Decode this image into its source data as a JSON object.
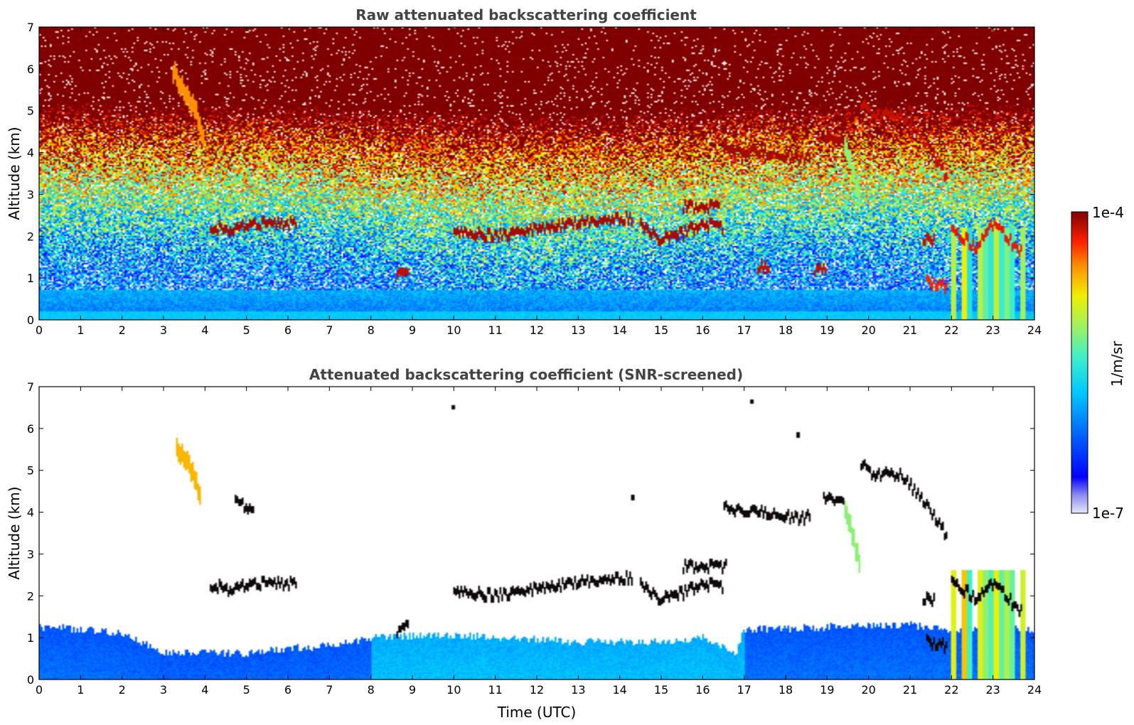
{
  "chart_data": [
    {
      "type": "heatmap",
      "title": "Raw attenuated backscattering coefficient",
      "xlabel": "",
      "ylabel": "Altitude (km)",
      "xlim": [
        0,
        24
      ],
      "ylim": [
        0,
        7
      ],
      "xticks": [
        "0",
        "1",
        "2",
        "3",
        "4",
        "5",
        "6",
        "7",
        "8",
        "9",
        "10",
        "11",
        "12",
        "13",
        "14",
        "15",
        "16",
        "17",
        "18",
        "19",
        "20",
        "21",
        "22",
        "23",
        "24"
      ],
      "yticks": [
        "0",
        "1",
        "2",
        "3",
        "4",
        "5",
        "6",
        "7"
      ],
      "screened": false,
      "background": {
        "near_surface_km": 0.6,
        "sky_noise_high": "yellow-orange-red speckle with altitude, daytime 8-17 UTC strongest"
      },
      "features": [
        {
          "kind": "fall_streak",
          "points": [
            [
              3.2,
              6.0
            ],
            [
              3.5,
              5.5
            ],
            [
              3.8,
              4.9
            ],
            [
              4.0,
              4.3
            ]
          ],
          "level": 0.82
        },
        {
          "kind": "cloud_layer",
          "points": [
            [
              4.1,
              2.25
            ],
            [
              4.6,
              2.1
            ],
            [
              5.2,
              2.3
            ],
            [
              6.2,
              2.3
            ]
          ],
          "level": 0.97
        },
        {
          "kind": "cloud_layer",
          "points": [
            [
              10.0,
              2.1
            ],
            [
              11.0,
              2.0
            ],
            [
              12.0,
              2.2
            ],
            [
              13.0,
              2.3
            ],
            [
              14.3,
              2.45
            ]
          ],
          "level": 0.97
        },
        {
          "kind": "cloud_layer",
          "points": [
            [
              14.5,
              2.3
            ],
            [
              15.0,
              1.9
            ],
            [
              15.6,
              2.1
            ],
            [
              16.0,
              2.3
            ],
            [
              16.5,
              2.2
            ]
          ],
          "level": 0.97
        },
        {
          "kind": "cloud_layer",
          "points": [
            [
              15.5,
              2.7
            ],
            [
              16.4,
              2.7
            ]
          ],
          "level": 0.97
        },
        {
          "kind": "cloud_layer",
          "points": [
            [
              16.5,
              4.1
            ],
            [
              17.3,
              4.0
            ],
            [
              18.3,
              3.85
            ],
            [
              18.6,
              3.9
            ]
          ],
          "level": 0.97
        },
        {
          "kind": "cloud_layer",
          "points": [
            [
              18.9,
              4.35
            ],
            [
              19.4,
              4.3
            ]
          ],
          "level": 0.97
        },
        {
          "kind": "fall_streak",
          "points": [
            [
              19.4,
              4.3
            ],
            [
              19.6,
              3.6
            ],
            [
              19.8,
              2.8
            ]
          ],
          "level": 0.6
        },
        {
          "kind": "cloud_layer",
          "points": [
            [
              19.8,
              5.2
            ],
            [
              20.1,
              4.9
            ],
            [
              20.8,
              4.9
            ],
            [
              21.2,
              4.4
            ],
            [
              21.6,
              3.9
            ],
            [
              21.9,
              3.4
            ]
          ],
          "level": 0.95
        },
        {
          "kind": "cloud_layer",
          "points": [
            [
              22.0,
              2.2
            ],
            [
              22.6,
              1.7
            ],
            [
              23.0,
              2.3
            ],
            [
              23.4,
              1.9
            ],
            [
              23.7,
              1.6
            ]
          ],
          "level": 0.92
        },
        {
          "kind": "rain_column",
          "x_range": [
            21.9,
            23.8
          ],
          "top_km": 2.2,
          "level": 0.55
        },
        {
          "kind": "low_cloud",
          "points": [
            [
              8.6,
              1.1
            ],
            [
              8.9,
              1.1
            ]
          ],
          "level": 0.95
        },
        {
          "kind": "low_cloud",
          "points": [
            [
              17.3,
              1.2
            ],
            [
              17.6,
              1.25
            ]
          ],
          "level": 0.95
        },
        {
          "kind": "low_cloud",
          "points": [
            [
              18.7,
              1.2
            ],
            [
              19.0,
              1.25
            ]
          ],
          "level": 0.95
        },
        {
          "kind": "low_cloud",
          "points": [
            [
              21.4,
              0.9
            ],
            [
              21.9,
              0.8
            ]
          ],
          "level": 0.9
        },
        {
          "kind": "low_cloud",
          "points": [
            [
              21.3,
              1.9
            ],
            [
              21.6,
              1.9
            ]
          ],
          "level": 0.95
        }
      ]
    },
    {
      "type": "heatmap",
      "title": "Attenuated backscattering coefficient (SNR-screened)",
      "xlabel": "Time (UTC)",
      "ylabel": "Altitude (km)",
      "xlim": [
        0,
        24
      ],
      "ylim": [
        0,
        7
      ],
      "xticks": [
        "0",
        "1",
        "2",
        "3",
        "4",
        "5",
        "6",
        "7",
        "8",
        "9",
        "10",
        "11",
        "12",
        "13",
        "14",
        "15",
        "16",
        "17",
        "18",
        "19",
        "20",
        "21",
        "22",
        "23",
        "24"
      ],
      "yticks": [
        "0",
        "1",
        "2",
        "3",
        "4",
        "5",
        "6",
        "7"
      ],
      "screened": true,
      "boundary_layer_top_km": [
        [
          0,
          1.25
        ],
        [
          1,
          1.2
        ],
        [
          2,
          1.1
        ],
        [
          3,
          0.65
        ],
        [
          4,
          0.65
        ],
        [
          5,
          0.6
        ],
        [
          6,
          0.75
        ],
        [
          7,
          0.8
        ],
        [
          8,
          1.0
        ],
        [
          9,
          1.05
        ],
        [
          10,
          1.05
        ],
        [
          11,
          1.0
        ],
        [
          12,
          0.95
        ],
        [
          13,
          0.9
        ],
        [
          14,
          0.9
        ],
        [
          15,
          0.9
        ],
        [
          16,
          1.0
        ],
        [
          16.8,
          0.6
        ],
        [
          17,
          1.2
        ],
        [
          18,
          1.2
        ],
        [
          19,
          1.25
        ],
        [
          20,
          1.3
        ],
        [
          21,
          1.3
        ],
        [
          22,
          1.2
        ],
        [
          24,
          1.2
        ]
      ],
      "features": [
        {
          "kind": "fall_streak",
          "points": [
            [
              3.3,
              5.6
            ],
            [
              3.6,
              5.2
            ],
            [
              3.8,
              4.6
            ],
            [
              3.9,
              4.4
            ]
          ],
          "level": 0.78
        },
        {
          "kind": "cloud_layer",
          "points": [
            [
              4.7,
              4.25
            ],
            [
              5.2,
              4.0
            ]
          ],
          "level": 1.0
        },
        {
          "kind": "cloud_layer",
          "points": [
            [
              4.1,
              2.3
            ],
            [
              4.6,
              2.1
            ],
            [
              5.2,
              2.3
            ],
            [
              6.2,
              2.3
            ]
          ],
          "level": 1.0
        },
        {
          "kind": "cloud_layer",
          "points": [
            [
              10.0,
              2.1
            ],
            [
              11.0,
              2.0
            ],
            [
              12.0,
              2.2
            ],
            [
              13.0,
              2.3
            ],
            [
              14.3,
              2.45
            ]
          ],
          "level": 1.0
        },
        {
          "kind": "cloud_layer",
          "points": [
            [
              14.5,
              2.3
            ],
            [
              15.0,
              1.9
            ],
            [
              15.6,
              2.1
            ],
            [
              16.0,
              2.3
            ],
            [
              16.5,
              2.2
            ]
          ],
          "level": 1.0
        },
        {
          "kind": "cloud_layer",
          "points": [
            [
              15.5,
              2.7
            ],
            [
              16.6,
              2.7
            ]
          ],
          "level": 1.0
        },
        {
          "kind": "cloud_layer",
          "points": [
            [
              16.5,
              4.1
            ],
            [
              17.3,
              4.0
            ],
            [
              18.3,
              3.85
            ],
            [
              18.6,
              3.9
            ]
          ],
          "level": 1.0
        },
        {
          "kind": "cloud_layer",
          "points": [
            [
              18.9,
              4.35
            ],
            [
              19.4,
              4.3
            ]
          ],
          "level": 1.0
        },
        {
          "kind": "fall_streak",
          "points": [
            [
              19.4,
              4.2
            ],
            [
              19.6,
              3.5
            ],
            [
              19.8,
              2.7
            ]
          ],
          "level": 0.6
        },
        {
          "kind": "cloud_layer",
          "points": [
            [
              19.8,
              5.2
            ],
            [
              20.1,
              4.9
            ],
            [
              20.8,
              4.9
            ],
            [
              21.2,
              4.4
            ],
            [
              21.6,
              3.9
            ],
            [
              21.9,
              3.4
            ]
          ],
          "level": 1.0
        },
        {
          "kind": "cloud_layer",
          "points": [
            [
              22.0,
              2.4
            ],
            [
              22.6,
              1.9
            ],
            [
              23.0,
              2.3
            ],
            [
              23.4,
              1.9
            ],
            [
              23.7,
              1.6
            ]
          ],
          "level": 1.0
        },
        {
          "kind": "rain_column",
          "x_range": [
            21.9,
            23.8
          ],
          "top_km": 2.6,
          "level": 0.6
        },
        {
          "kind": "low_cloud",
          "points": [
            [
              8.6,
              1.1
            ],
            [
              8.9,
              1.3
            ]
          ],
          "level": 1.0
        },
        {
          "kind": "low_cloud",
          "points": [
            [
              21.4,
              0.9
            ],
            [
              21.9,
              0.8
            ]
          ],
          "level": 1.0
        },
        {
          "kind": "low_cloud",
          "points": [
            [
              21.3,
              1.9
            ],
            [
              21.6,
              1.9
            ]
          ],
          "level": 1.0
        },
        {
          "kind": "speck",
          "points": [
            [
              10.0,
              6.5
            ],
            [
              17.2,
              6.65
            ],
            [
              18.3,
              5.85
            ],
            [
              14.3,
              4.35
            ]
          ],
          "level": 1.0
        }
      ]
    }
  ],
  "colorbar": {
    "label": "1/m/sr",
    "max_label": "1e-4",
    "min_label": "1e-7",
    "scale": "log",
    "colormap": "jet",
    "range": [
      1e-07,
      0.0001
    ]
  }
}
